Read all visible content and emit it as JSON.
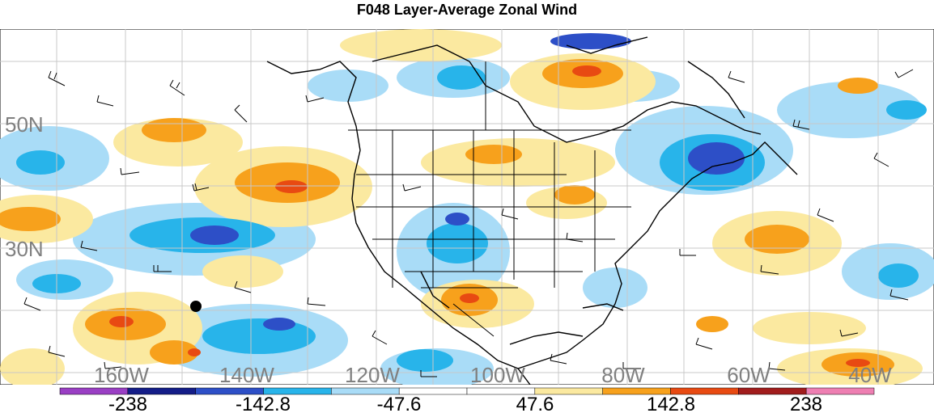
{
  "title": "F048 Layer-Average Zonal Wind",
  "map": {
    "lat_labels": [
      "50N",
      "30N"
    ],
    "lon_labels": [
      "160W",
      "140W",
      "120W",
      "100W",
      "80W",
      "60W",
      "40W"
    ],
    "marker": "black-dot"
  },
  "colorbar": {
    "tick_labels": [
      "-238",
      "-142.8",
      "-47.6",
      "47.6",
      "142.8",
      "238"
    ],
    "colors": [
      "#9a3fc4",
      "#141d88",
      "#2d4fc7",
      "#28b4ea",
      "#a9dcf7",
      "#ffffff",
      "#ffffff",
      "#fbe9a0",
      "#f7a11c",
      "#e84a12",
      "#a11c1c",
      "#ee7fb2"
    ]
  },
  "colors": {
    "strong_negative": "#2d4fc7",
    "negative": "#28b4ea",
    "weak_negative": "#a9dcf7",
    "weak_positive": "#fbe9a0",
    "positive": "#f7a11c",
    "strong_positive": "#e84a12"
  }
}
